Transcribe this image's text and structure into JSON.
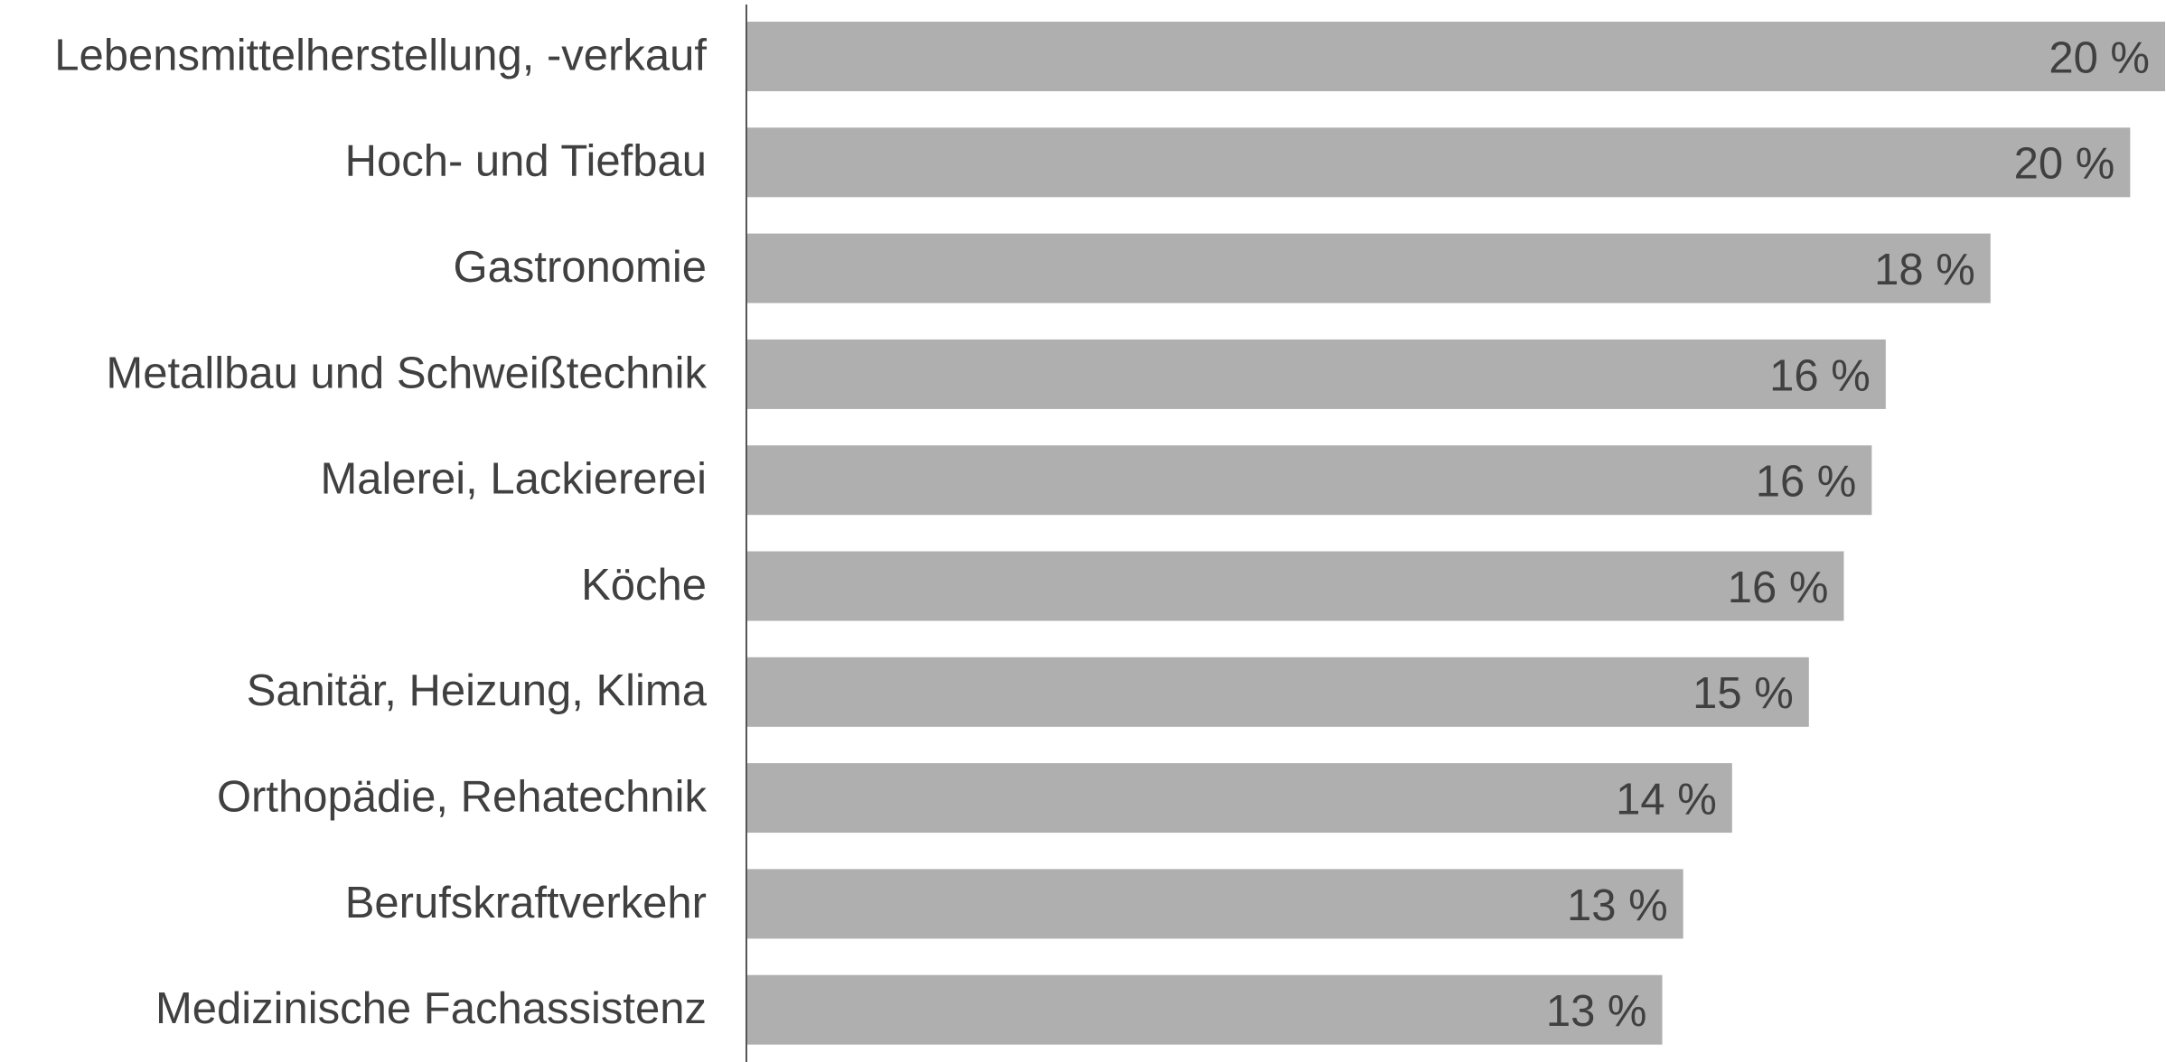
{
  "chart_data": {
    "type": "hbar",
    "categories": [
      "Lebensmittelherstellung, -verkauf",
      "Hoch- und Tiefbau",
      "Gastronomie",
      "Metallbau und Schweißtechnik",
      "Malerei, Lackiererei",
      "Köche",
      "Sanitär, Heizung, Klima",
      "Orthopädie, Rehatechnik",
      "Berufskraftverkehr",
      "Medizinische Fachassistenz"
    ],
    "values": [
      20.3,
      19.8,
      17.8,
      16.3,
      16.1,
      15.7,
      15.2,
      14.1,
      13.4,
      13.1
    ],
    "value_labels": [
      "20 %",
      "20 %",
      "18 %",
      "16 %",
      "16 %",
      "16 %",
      "15 %",
      "14 %",
      "13 %",
      "13 %"
    ],
    "color": "#afafaf"
  }
}
